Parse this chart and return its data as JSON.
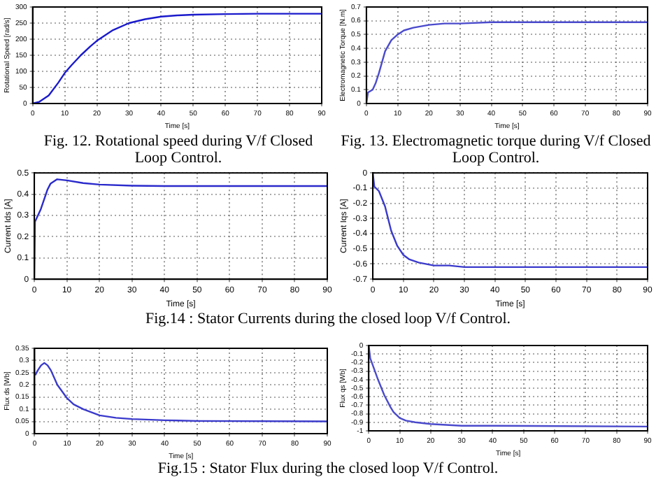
{
  "chart_data": [
    {
      "type": "line",
      "xlabel": "Time [s]",
      "ylabel": "Rotational Speed [rad/s]",
      "annotations": [
        "Fig. 12.  Rotational speed during  V/f Closed Loop Control."
      ],
      "series": [
        {
          "color": "#1a1acc",
          "x": [
            0,
            2,
            5,
            8,
            10,
            12,
            15,
            18,
            20,
            25,
            30,
            35,
            40,
            45,
            50,
            60,
            70,
            80,
            90
          ],
          "values": [
            0,
            5,
            25,
            65,
            95,
            118,
            150,
            178,
            195,
            228,
            250,
            262,
            270,
            274,
            276,
            278,
            279,
            279,
            279
          ]
        }
      ],
      "xlim": [
        0,
        90
      ],
      "xticks": [
        0,
        10,
        20,
        30,
        40,
        50,
        60,
        70,
        80,
        90
      ],
      "ylim": [
        0,
        300
      ],
      "yticks": [
        0,
        50,
        100,
        150,
        200,
        250,
        300
      ],
      "grid": true,
      "line_style": "solid",
      "marker": "none"
    },
    {
      "type": "line",
      "xlabel": "Time [s]",
      "ylabel": "Electromagnetic Torque [N.m]",
      "annotations": [
        "Fig. 13.  Electromagnetic torque during V/f Closed Loop Control."
      ],
      "series": [
        {
          "color": "#4a4acc",
          "x": [
            0,
            0.5,
            2,
            3,
            4,
            5,
            6,
            8,
            10,
            12,
            15,
            20,
            25,
            30,
            40,
            90
          ],
          "values": [
            0,
            0.08,
            0.1,
            0.15,
            0.22,
            0.3,
            0.38,
            0.46,
            0.5,
            0.53,
            0.55,
            0.57,
            0.58,
            0.58,
            0.59,
            0.59
          ]
        }
      ],
      "xlim": [
        0,
        90
      ],
      "xticks": [
        0,
        10,
        20,
        30,
        40,
        50,
        60,
        70,
        80,
        90
      ],
      "ylim": [
        0,
        0.7
      ],
      "yticks": [
        0,
        0.1,
        0.2,
        0.3,
        0.4,
        0.5,
        0.6,
        0.7
      ],
      "grid": true,
      "line_style": "solid",
      "marker": "none"
    },
    {
      "type": "line",
      "xlabel": "Time [s]",
      "ylabel": "Current Ids [A]",
      "annotations": [
        "Fig.14 : Stator Currents during the closed loop V/f Control."
      ],
      "series": [
        {
          "color": "#2a2acc",
          "x": [
            0,
            0.2,
            2,
            4,
            5,
            7,
            10,
            15,
            20,
            30,
            40,
            90
          ],
          "values": [
            0,
            0.27,
            0.33,
            0.42,
            0.45,
            0.47,
            0.465,
            0.452,
            0.445,
            0.44,
            0.438,
            0.438
          ]
        }
      ],
      "xlim": [
        0,
        90
      ],
      "xticks": [
        0,
        10,
        20,
        30,
        40,
        50,
        60,
        70,
        80,
        90
      ],
      "ylim": [
        0,
        0.5
      ],
      "yticks": [
        0,
        0.1,
        0.2,
        0.3,
        0.4,
        0.5
      ],
      "grid": true,
      "line_style": "solid",
      "marker": "none"
    },
    {
      "type": "line",
      "xlabel": "Time [s]",
      "ylabel": "Current Iqs [A]",
      "series": [
        {
          "color": "#3a3acc",
          "x": [
            0,
            0.5,
            2,
            4,
            5,
            6,
            8,
            10,
            12,
            15,
            20,
            25,
            30,
            40,
            90
          ],
          "values": [
            0,
            -0.09,
            -0.12,
            -0.22,
            -0.3,
            -0.38,
            -0.48,
            -0.54,
            -0.57,
            -0.59,
            -0.61,
            -0.61,
            -0.62,
            -0.62,
            -0.62
          ]
        }
      ],
      "xlim": [
        0,
        90
      ],
      "xticks": [
        0,
        10,
        20,
        30,
        40,
        50,
        60,
        70,
        80,
        90
      ],
      "ylim": [
        -0.7,
        0
      ],
      "yticks": [
        -0.7,
        -0.6,
        -0.5,
        -0.4,
        -0.3,
        -0.2,
        -0.1,
        0
      ],
      "grid": true,
      "line_style": "solid",
      "marker": "none"
    },
    {
      "type": "line",
      "xlabel": "Time [s]",
      "ylabel": "Flux ds [Wb]",
      "annotations": [
        "Fig.15 : Stator Flux during the closed loop V/f Control."
      ],
      "series": [
        {
          "color": "#3a3acc",
          "x": [
            0.2,
            1,
            2,
            3,
            4,
            5,
            7,
            10,
            12,
            15,
            20,
            25,
            30,
            40,
            50,
            90
          ],
          "values": [
            0.24,
            0.26,
            0.28,
            0.29,
            0.28,
            0.26,
            0.2,
            0.145,
            0.12,
            0.1,
            0.075,
            0.065,
            0.06,
            0.055,
            0.052,
            0.05
          ]
        }
      ],
      "xlim": [
        0,
        90
      ],
      "xticks": [
        0,
        10,
        20,
        30,
        40,
        50,
        60,
        70,
        80,
        90
      ],
      "ylim": [
        0,
        0.35
      ],
      "yticks": [
        0,
        0.05,
        0.1,
        0.15,
        0.2,
        0.25,
        0.3,
        0.35
      ],
      "grid": true,
      "line_style": "solid",
      "marker": "none"
    },
    {
      "type": "line",
      "xlabel": "Time [s]",
      "ylabel": "Flux qs [Wb]",
      "series": [
        {
          "color": "#4a4acc",
          "x": [
            0,
            0.5,
            1,
            2,
            3,
            5,
            7,
            8,
            10,
            12,
            15,
            20,
            25,
            30,
            40,
            90
          ],
          "values": [
            0,
            -0.15,
            -0.2,
            -0.3,
            -0.4,
            -0.58,
            -0.72,
            -0.78,
            -0.85,
            -0.88,
            -0.9,
            -0.92,
            -0.93,
            -0.94,
            -0.94,
            -0.95
          ]
        }
      ],
      "xlim": [
        0,
        90
      ],
      "xticks": [
        0,
        10,
        20,
        30,
        40,
        50,
        60,
        70,
        80,
        90
      ],
      "ylim": [
        -1,
        0
      ],
      "yticks": [
        -1,
        -0.9,
        -0.8,
        -0.7,
        -0.6,
        -0.5,
        -0.4,
        -0.3,
        -0.2,
        -0.1,
        0
      ],
      "grid": true,
      "line_style": "solid",
      "marker": "none"
    }
  ]
}
